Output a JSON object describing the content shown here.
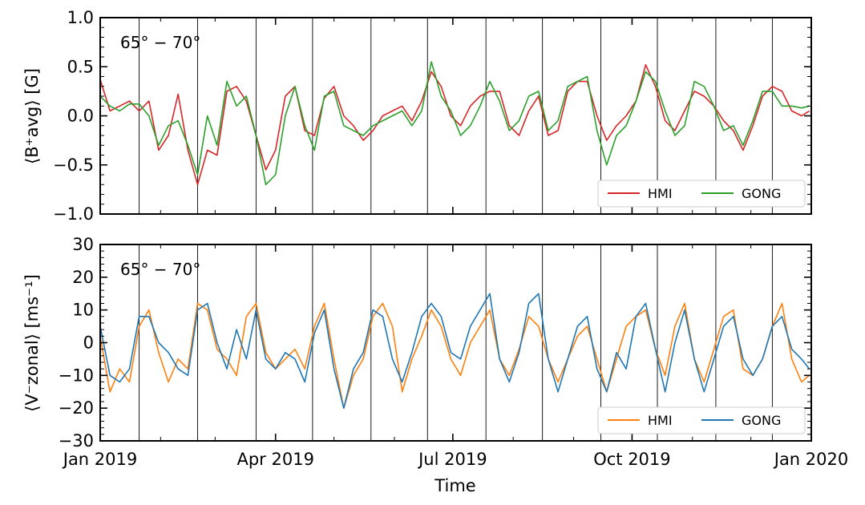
{
  "chart_data": [
    {
      "type": "line",
      "ylabel": "⟨B⁺avg⟩ [G]",
      "annotation": "65° − 70°",
      "ylim": [
        -1.0,
        1.0
      ],
      "yticks": [
        -1.0,
        -0.5,
        0.0,
        0.5,
        1.0
      ],
      "ytick_labels": [
        "−1.0",
        "−0.5",
        "0.0",
        "0.5",
        "1.0"
      ],
      "legend_position": "lower-right",
      "vlines": [
        20,
        50,
        80,
        109,
        139,
        168,
        198,
        227,
        257,
        286,
        316,
        345
      ],
      "series": [
        {
          "name": "HMI",
          "color": "#d62728",
          "x": [
            0,
            5,
            10,
            15,
            20,
            25,
            30,
            35,
            40,
            45,
            50,
            55,
            60,
            65,
            70,
            75,
            80,
            85,
            90,
            95,
            100,
            105,
            110,
            115,
            120,
            125,
            130,
            135,
            140,
            145,
            150,
            155,
            160,
            165,
            170,
            175,
            180,
            185,
            190,
            195,
            200,
            205,
            210,
            215,
            220,
            225,
            230,
            235,
            240,
            245,
            250,
            255,
            260,
            265,
            270,
            275,
            280,
            285,
            290,
            295,
            300,
            305,
            310,
            315,
            320,
            325,
            330,
            335,
            340,
            345,
            350,
            355,
            360,
            364
          ],
          "y": [
            0.37,
            0.05,
            0.1,
            0.15,
            0.05,
            0.15,
            -0.35,
            -0.2,
            0.22,
            -0.35,
            -0.7,
            -0.35,
            -0.4,
            0.25,
            0.3,
            0.15,
            -0.2,
            -0.55,
            -0.35,
            0.2,
            0.3,
            -0.15,
            -0.2,
            0.18,
            0.3,
            0.0,
            -0.1,
            -0.25,
            -0.15,
            0.0,
            0.05,
            0.1,
            -0.05,
            0.15,
            0.45,
            0.3,
            0.0,
            -0.1,
            0.1,
            0.2,
            0.25,
            0.25,
            -0.1,
            -0.2,
            0.05,
            0.2,
            -0.2,
            -0.15,
            0.25,
            0.35,
            0.35,
            0.0,
            -0.25,
            -0.1,
            0.0,
            0.15,
            0.52,
            0.3,
            -0.05,
            -0.15,
            0.05,
            0.25,
            0.2,
            0.1,
            -0.05,
            -0.15,
            -0.35,
            -0.1,
            0.2,
            0.3,
            0.25,
            0.05,
            0.0,
            0.05
          ]
        },
        {
          "name": "GONG",
          "color": "#2ca02c",
          "x": [
            0,
            5,
            10,
            15,
            20,
            25,
            30,
            35,
            40,
            45,
            50,
            55,
            60,
            65,
            70,
            75,
            80,
            85,
            90,
            95,
            100,
            105,
            110,
            115,
            120,
            125,
            130,
            135,
            140,
            145,
            150,
            155,
            160,
            165,
            170,
            175,
            180,
            185,
            190,
            195,
            200,
            205,
            210,
            215,
            220,
            225,
            230,
            235,
            240,
            245,
            250,
            255,
            260,
            265,
            270,
            275,
            280,
            285,
            290,
            295,
            300,
            305,
            310,
            315,
            320,
            325,
            330,
            335,
            340,
            345,
            350,
            355,
            360,
            364
          ],
          "y": [
            0.2,
            0.1,
            0.05,
            0.12,
            0.12,
            0.0,
            -0.3,
            -0.1,
            -0.05,
            -0.3,
            -0.6,
            0.0,
            -0.3,
            0.35,
            0.1,
            0.2,
            -0.2,
            -0.7,
            -0.6,
            0.0,
            0.3,
            -0.1,
            -0.35,
            0.2,
            0.25,
            -0.1,
            -0.15,
            -0.2,
            -0.1,
            -0.05,
            0.0,
            0.05,
            -0.1,
            0.05,
            0.55,
            0.2,
            0.05,
            -0.2,
            -0.1,
            0.1,
            0.35,
            0.15,
            -0.15,
            -0.05,
            0.2,
            0.25,
            -0.15,
            -0.05,
            0.3,
            0.35,
            0.4,
            -0.15,
            -0.5,
            -0.2,
            -0.1,
            0.15,
            0.45,
            0.35,
            0.05,
            -0.2,
            -0.1,
            0.35,
            0.3,
            0.1,
            -0.15,
            -0.1,
            -0.3,
            -0.05,
            0.25,
            0.25,
            0.1,
            0.1,
            0.08,
            0.1
          ]
        }
      ]
    },
    {
      "type": "line",
      "xlabel": "Time",
      "ylabel": "⟨V⁻zonal⟩ [ms⁻¹]",
      "annotation": "65° − 70°",
      "ylim": [
        -30,
        30
      ],
      "yticks": [
        -30,
        -20,
        -10,
        0,
        10,
        20,
        30
      ],
      "ytick_labels": [
        "−30",
        "−20",
        "−10",
        "0",
        "10",
        "20",
        "30"
      ],
      "xticks": [
        0,
        90,
        181,
        273,
        365
      ],
      "xtick_labels": [
        "Jan 2019",
        "Apr 2019",
        "Jul 2019",
        "Oct 2019",
        "Jan 2020"
      ],
      "legend_position": "lower-right",
      "vlines": [
        20,
        50,
        80,
        109,
        139,
        168,
        198,
        227,
        257,
        286,
        316,
        345
      ],
      "series": [
        {
          "name": "HMI",
          "color": "#ff7f0e",
          "x": [
            0,
            5,
            10,
            15,
            20,
            25,
            30,
            35,
            40,
            45,
            50,
            55,
            60,
            65,
            70,
            75,
            80,
            85,
            90,
            95,
            100,
            105,
            110,
            115,
            120,
            125,
            130,
            135,
            140,
            145,
            150,
            155,
            160,
            165,
            170,
            175,
            180,
            185,
            190,
            195,
            200,
            205,
            210,
            215,
            220,
            225,
            230,
            235,
            240,
            245,
            250,
            255,
            260,
            265,
            270,
            275,
            280,
            285,
            290,
            295,
            300,
            305,
            310,
            315,
            320,
            325,
            330,
            335,
            340,
            345,
            350,
            355,
            360,
            364
          ],
          "y": [
            2,
            -15,
            -8,
            -12,
            5,
            10,
            -3,
            -12,
            -5,
            -8,
            12,
            10,
            -2,
            -5,
            -10,
            8,
            12,
            -3,
            -8,
            -5,
            -2,
            -8,
            5,
            12,
            -5,
            -20,
            -10,
            -5,
            8,
            12,
            5,
            -15,
            -5,
            2,
            10,
            5,
            -5,
            -10,
            0,
            5,
            10,
            -5,
            -10,
            -2,
            8,
            5,
            -5,
            -12,
            -5,
            2,
            5,
            -5,
            -15,
            -5,
            5,
            8,
            10,
            -2,
            -10,
            5,
            12,
            -5,
            -12,
            -2,
            8,
            10,
            -8,
            -10,
            -5,
            5,
            12,
            -5,
            -12,
            -10
          ]
        },
        {
          "name": "GONG",
          "color": "#1f77b4",
          "x": [
            0,
            5,
            10,
            15,
            20,
            25,
            30,
            35,
            40,
            45,
            50,
            55,
            60,
            65,
            70,
            75,
            80,
            85,
            90,
            95,
            100,
            105,
            110,
            115,
            120,
            125,
            130,
            135,
            140,
            145,
            150,
            155,
            160,
            165,
            170,
            175,
            180,
            185,
            190,
            195,
            200,
            205,
            210,
            215,
            220,
            225,
            230,
            235,
            240,
            245,
            250,
            255,
            260,
            265,
            270,
            275,
            280,
            285,
            290,
            295,
            300,
            305,
            310,
            315,
            320,
            325,
            330,
            335,
            340,
            345,
            350,
            355,
            360,
            364
          ],
          "y": [
            5,
            -10,
            -12,
            -8,
            8,
            8,
            0,
            -3,
            -8,
            -10,
            10,
            12,
            0,
            -8,
            4,
            -5,
            10,
            -5,
            -8,
            -3,
            -5,
            -12,
            3,
            10,
            -8,
            -20,
            -8,
            -3,
            10,
            8,
            -5,
            -12,
            -3,
            8,
            12,
            8,
            -3,
            -5,
            5,
            10,
            15,
            -5,
            -12,
            -3,
            12,
            15,
            -5,
            -15,
            -5,
            5,
            8,
            -8,
            -15,
            -3,
            -8,
            8,
            12,
            -2,
            -15,
            0,
            10,
            -5,
            -15,
            -5,
            5,
            8,
            -5,
            -10,
            -5,
            5,
            8,
            -2,
            -5,
            -8
          ]
        }
      ]
    }
  ]
}
